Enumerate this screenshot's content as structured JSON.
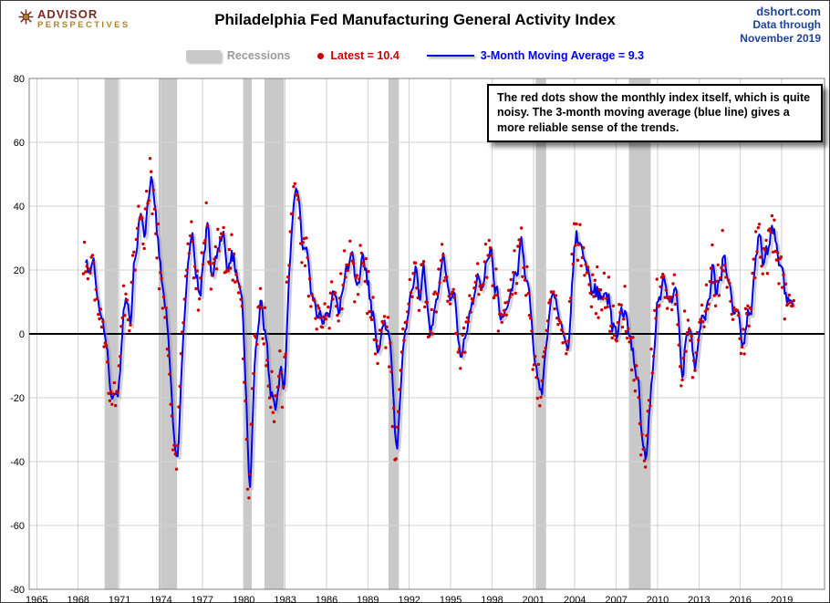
{
  "header": {
    "logo_line1": "ADVISOR",
    "logo_line2": "PERSPECTIVES",
    "title": "Philadelphia Fed Manufacturing General Activity Index",
    "source_line1": "dshort.com",
    "source_line2": "Data through",
    "source_line3": "November 2019"
  },
  "legend": {
    "recessions": "Recessions",
    "latest": "Latest = 10.4",
    "moving_average": "3-Month Moving Average = 9.3"
  },
  "annotation": {
    "text": "The red dots show the monthly index itself, which is quite noisy. The 3-month moving average (blue line) gives a more reliable sense of the trends."
  },
  "colors": {
    "dot": "#cc0000",
    "line": "#0000eb",
    "line_shadow": "#8f8f8f",
    "recession": "#c9c9c9",
    "grid": "#d2d2d2",
    "plot_border": "#808080",
    "zero_line": "#000000",
    "source_text": "#1f4396",
    "logo_maroon": "#7b2a21",
    "logo_gold": "#a8862f"
  },
  "chart_data": {
    "type": "line+scatter",
    "title": "Philadelphia Fed Manufacturing General Activity Index",
    "xlabel": "",
    "ylabel": "",
    "xlim": [
      1964.45,
      2022.1
    ],
    "ylim": [
      -80,
      80
    ],
    "grid": true,
    "legend_position": "top",
    "x_ticks": [
      1965,
      1968,
      1971,
      1974,
      1977,
      1980,
      1983,
      1986,
      1989,
      1992,
      1995,
      1998,
      2001,
      2004,
      2007,
      2010,
      2013,
      2016,
      2019
    ],
    "y_ticks": [
      80,
      60,
      40,
      20,
      0,
      -20,
      -40,
      -60,
      -80
    ],
    "series": [
      {
        "name": "Latest",
        "style": "scatter",
        "color": "#cc0000",
        "latest_value": 10.4
      },
      {
        "name": "3-Month Moving Average",
        "style": "line",
        "color": "#0000eb",
        "latest_value": 9.3
      }
    ],
    "recessions": [
      [
        1969.92,
        1970.92
      ],
      [
        1973.83,
        1975.17
      ],
      [
        1980.0,
        1980.58
      ],
      [
        1981.5,
        1982.92
      ],
      [
        1990.5,
        1991.25
      ],
      [
        2001.17,
        2001.92
      ],
      [
        2007.92,
        2009.5
      ]
    ],
    "start_month": [
      1968,
      5
    ],
    "end_month": [
      2019,
      11
    ],
    "monthly_noise_amplitude": 11,
    "noise_seed": 20191121,
    "final_three_monthly": [
      8.7,
      8.8,
      10.4
    ],
    "trend_anchors": [
      [
        1968.38,
        20
      ],
      [
        1968.6,
        26
      ],
      [
        1968.85,
        14
      ],
      [
        1969.1,
        20
      ],
      [
        1969.35,
        12
      ],
      [
        1969.6,
        6
      ],
      [
        1969.85,
        0
      ],
      [
        1970.1,
        -8
      ],
      [
        1970.45,
        -16
      ],
      [
        1970.8,
        -23
      ],
      [
        1971.0,
        -14
      ],
      [
        1971.2,
        2
      ],
      [
        1971.45,
        11
      ],
      [
        1971.7,
        7
      ],
      [
        1971.95,
        16
      ],
      [
        1972.2,
        30
      ],
      [
        1972.5,
        38
      ],
      [
        1972.75,
        33
      ],
      [
        1973.0,
        40
      ],
      [
        1973.25,
        50
      ],
      [
        1973.45,
        41
      ],
      [
        1973.65,
        31
      ],
      [
        1973.9,
        22
      ],
      [
        1974.15,
        12
      ],
      [
        1974.4,
        2
      ],
      [
        1974.65,
        -12
      ],
      [
        1974.85,
        -30
      ],
      [
        1975.05,
        -45
      ],
      [
        1975.25,
        -34
      ],
      [
        1975.45,
        -14
      ],
      [
        1975.65,
        8
      ],
      [
        1975.85,
        24
      ],
      [
        1976.05,
        36
      ],
      [
        1976.3,
        29
      ],
      [
        1976.55,
        19
      ],
      [
        1976.8,
        13
      ],
      [
        1977.0,
        22
      ],
      [
        1977.2,
        35
      ],
      [
        1977.45,
        27
      ],
      [
        1977.7,
        19
      ],
      [
        1977.95,
        26
      ],
      [
        1978.25,
        35
      ],
      [
        1978.5,
        26
      ],
      [
        1978.8,
        21
      ],
      [
        1979.1,
        25
      ],
      [
        1979.4,
        19
      ],
      [
        1979.65,
        12
      ],
      [
        1979.9,
        2
      ],
      [
        1980.1,
        -22
      ],
      [
        1980.3,
        -54
      ],
      [
        1980.5,
        -38
      ],
      [
        1980.7,
        -12
      ],
      [
        1980.95,
        4
      ],
      [
        1981.15,
        10
      ],
      [
        1981.4,
        4
      ],
      [
        1981.65,
        -6
      ],
      [
        1981.9,
        -16
      ],
      [
        1982.2,
        -24
      ],
      [
        1982.45,
        -18
      ],
      [
        1982.65,
        -8
      ],
      [
        1982.85,
        -16
      ],
      [
        1983.05,
        2
      ],
      [
        1983.3,
        26
      ],
      [
        1983.55,
        43
      ],
      [
        1983.8,
        45
      ],
      [
        1984.0,
        37
      ],
      [
        1984.25,
        31
      ],
      [
        1984.5,
        24
      ],
      [
        1984.75,
        16
      ],
      [
        1985.0,
        9
      ],
      [
        1985.3,
        3
      ],
      [
        1985.6,
        8
      ],
      [
        1985.9,
        2
      ],
      [
        1986.2,
        8
      ],
      [
        1986.5,
        12
      ],
      [
        1986.8,
        5
      ],
      [
        1987.1,
        14
      ],
      [
        1987.4,
        21
      ],
      [
        1987.7,
        29
      ],
      [
        1988.0,
        20
      ],
      [
        1988.3,
        14
      ],
      [
        1988.6,
        22
      ],
      [
        1988.9,
        17
      ],
      [
        1989.2,
        7
      ],
      [
        1989.5,
        -1
      ],
      [
        1989.8,
        -4
      ],
      [
        1990.1,
        3
      ],
      [
        1990.4,
        5
      ],
      [
        1990.6,
        -6
      ],
      [
        1990.8,
        -26
      ],
      [
        1991.0,
        -39
      ],
      [
        1991.2,
        -24
      ],
      [
        1991.45,
        -4
      ],
      [
        1991.7,
        6
      ],
      [
        1991.95,
        9
      ],
      [
        1992.2,
        16
      ],
      [
        1992.45,
        22
      ],
      [
        1992.7,
        9
      ],
      [
        1992.95,
        17
      ],
      [
        1993.25,
        9
      ],
      [
        1993.55,
        -1
      ],
      [
        1993.85,
        7
      ],
      [
        1994.15,
        19
      ],
      [
        1994.45,
        26
      ],
      [
        1994.75,
        17
      ],
      [
        1995.05,
        11
      ],
      [
        1995.35,
        4
      ],
      [
        1995.7,
        -7
      ],
      [
        1996.0,
        -5
      ],
      [
        1996.3,
        6
      ],
      [
        1996.6,
        12
      ],
      [
        1996.9,
        17
      ],
      [
        1997.2,
        14
      ],
      [
        1997.5,
        21
      ],
      [
        1997.8,
        29
      ],
      [
        1998.1,
        17
      ],
      [
        1998.4,
        10
      ],
      [
        1998.7,
        5
      ],
      [
        1999.0,
        9
      ],
      [
        1999.3,
        13
      ],
      [
        1999.6,
        18
      ],
      [
        1999.9,
        22
      ],
      [
        2000.2,
        24
      ],
      [
        2000.5,
        12
      ],
      [
        2000.8,
        4
      ],
      [
        2001.05,
        -9
      ],
      [
        2001.35,
        -21
      ],
      [
        2001.6,
        -14
      ],
      [
        2001.85,
        -4
      ],
      [
        2002.15,
        9
      ],
      [
        2002.45,
        15
      ],
      [
        2002.75,
        7
      ],
      [
        2003.05,
        -1
      ],
      [
        2003.35,
        -6
      ],
      [
        2003.65,
        12
      ],
      [
        2003.95,
        28
      ],
      [
        2004.2,
        32
      ],
      [
        2004.5,
        29
      ],
      [
        2004.8,
        22
      ],
      [
        2005.1,
        11
      ],
      [
        2005.4,
        9
      ],
      [
        2005.65,
        14
      ],
      [
        2005.9,
        7
      ],
      [
        2006.2,
        12
      ],
      [
        2006.5,
        7
      ],
      [
        2006.8,
        4
      ],
      [
        2007.1,
        3
      ],
      [
        2007.4,
        9
      ],
      [
        2007.65,
        10
      ],
      [
        2007.95,
        2
      ],
      [
        2008.25,
        -11
      ],
      [
        2008.55,
        -17
      ],
      [
        2008.85,
        -30
      ],
      [
        2009.05,
        -38
      ],
      [
        2009.3,
        -28
      ],
      [
        2009.55,
        -12
      ],
      [
        2009.8,
        4
      ],
      [
        2010.1,
        14
      ],
      [
        2010.4,
        18
      ],
      [
        2010.7,
        6
      ],
      [
        2010.95,
        13
      ],
      [
        2011.2,
        21
      ],
      [
        2011.45,
        6
      ],
      [
        2011.7,
        -13
      ],
      [
        2011.95,
        2
      ],
      [
        2012.25,
        -2
      ],
      [
        2012.55,
        -9
      ],
      [
        2012.85,
        -3
      ],
      [
        2013.1,
        3
      ],
      [
        2013.4,
        6
      ],
      [
        2013.7,
        13
      ],
      [
        2013.95,
        19
      ],
      [
        2014.25,
        13
      ],
      [
        2014.55,
        21
      ],
      [
        2014.85,
        26
      ],
      [
        2015.15,
        14
      ],
      [
        2015.45,
        7
      ],
      [
        2015.75,
        2
      ],
      [
        2016.05,
        -6
      ],
      [
        2016.35,
        2
      ],
      [
        2016.65,
        9
      ],
      [
        2016.95,
        18
      ],
      [
        2017.15,
        32
      ],
      [
        2017.45,
        28
      ],
      [
        2017.75,
        24
      ],
      [
        2018.05,
        27
      ],
      [
        2018.35,
        30
      ],
      [
        2018.65,
        24
      ],
      [
        2018.95,
        18
      ],
      [
        2019.2,
        11
      ],
      [
        2019.45,
        8
      ],
      [
        2019.65,
        13
      ],
      [
        2019.88,
        9.5
      ]
    ]
  }
}
